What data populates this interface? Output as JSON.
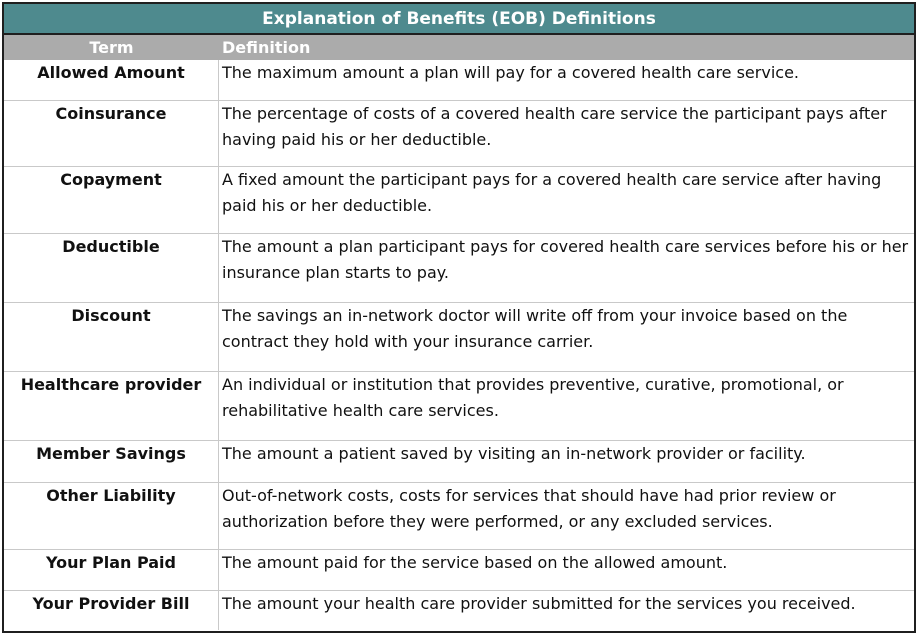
{
  "table": {
    "title": "Explanation of Benefits (EOB) Definitions",
    "header": {
      "term": "Term",
      "definition": "Definition"
    },
    "rows": [
      {
        "term": "Allowed Amount",
        "definition": "The maximum amount a plan will pay for a covered health care service."
      },
      {
        "term": "Coinsurance",
        "definition": "The percentage of costs of a covered health care service the participant pays after having paid his or her deductible."
      },
      {
        "term": "Copayment",
        "definition": "A fixed amount the participant pays for a covered health care service after having paid his or her deductible."
      },
      {
        "term": "Deductible",
        "definition": "The amount a plan participant pays for covered health care services before his or her insurance plan starts to pay."
      },
      {
        "term": "Discount",
        "definition": "The savings an in-network doctor will write off from your invoice based on the contract they hold with your insurance carrier."
      },
      {
        "term": "Healthcare provider",
        "definition": "An individual or institution that provides preventive, curative, promotional, or rehabilitative health care services."
      },
      {
        "term": "Member Savings",
        "definition": "The amount a patient saved by visiting an in-network provider or facility."
      },
      {
        "term": "Other Liability",
        "definition": "Out-of-network costs, costs for services that should have had prior review or authorization before they were performed, or any excluded services."
      },
      {
        "term": "Your Plan Paid",
        "definition": "The amount paid for the service based on the allowed amount."
      },
      {
        "term": "Your Provider Bill",
        "definition": "The amount your health care provider submitted for the services you received."
      }
    ]
  }
}
